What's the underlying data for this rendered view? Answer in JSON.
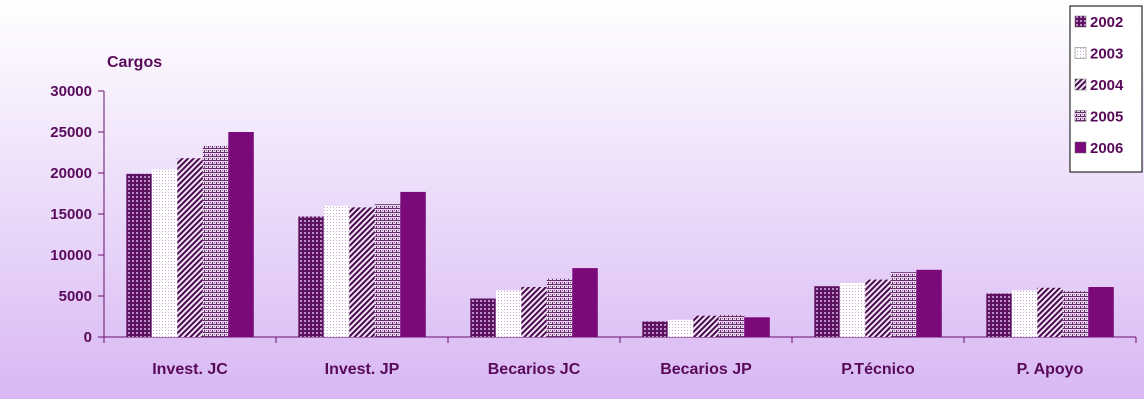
{
  "colors": {
    "axis": "#6b0f6b",
    "text": "#5a0a5a",
    "bg_top": "#ffffff",
    "bg_bottom": "#d8b8f4",
    "bar_dark": "#7a0a7a",
    "bar_light": "#ffffff"
  },
  "chart_data": {
    "type": "bar",
    "title": "",
    "xlabel": "",
    "ylabel": "Cargos",
    "ylim": [
      0,
      30000
    ],
    "yticks": [
      "0",
      "5000",
      "10000",
      "15000",
      "20000",
      "25000",
      "30000"
    ],
    "legend_position": "top-right",
    "categories": [
      "Invest. JC",
      "Invest. JP",
      "Becarios JC",
      "Becarios JP",
      "P.Técnico",
      "P. Apoyo"
    ],
    "series": [
      {
        "name": "2002",
        "pattern": "grid",
        "values": [
          19900,
          14700,
          4700,
          1900,
          6200,
          5300
        ]
      },
      {
        "name": "2003",
        "pattern": "dots",
        "values": [
          20400,
          16000,
          5700,
          2100,
          6600,
          5700
        ]
      },
      {
        "name": "2004",
        "pattern": "diag",
        "values": [
          21800,
          15800,
          6100,
          2600,
          7000,
          6000
        ]
      },
      {
        "name": "2005",
        "pattern": "cross",
        "values": [
          23300,
          16200,
          7100,
          2700,
          7900,
          5600
        ]
      },
      {
        "name": "2006",
        "pattern": "solid",
        "values": [
          25000,
          17700,
          8400,
          2400,
          8200,
          6100
        ]
      }
    ]
  }
}
